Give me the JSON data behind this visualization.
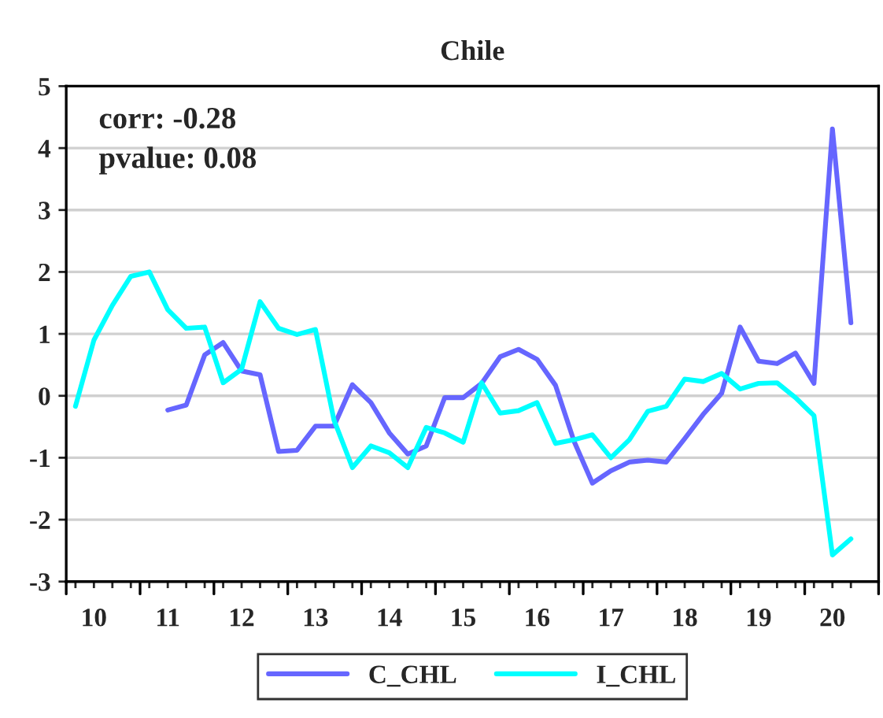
{
  "chart_data": {
    "type": "line",
    "title": "Chile",
    "annotations": [
      "corr: -0.28",
      "pvalue: 0.08"
    ],
    "categories": [
      null,
      "10",
      null,
      null,
      null,
      "11",
      null,
      null,
      null,
      "12",
      null,
      null,
      null,
      "13",
      null,
      null,
      null,
      "14",
      null,
      null,
      null,
      "15",
      null,
      null,
      null,
      "16",
      null,
      null,
      null,
      "17",
      null,
      null,
      null,
      "18",
      null,
      null,
      null,
      "19",
      null,
      null,
      null,
      "20",
      null
    ],
    "series": [
      {
        "name": "C_CHL",
        "color": "#6666ff",
        "values": [
          null,
          null,
          null,
          null,
          null,
          -0.23,
          -0.15,
          0.66,
          0.86,
          0.4,
          0.34,
          -0.9,
          -0.88,
          -0.49,
          -0.49,
          0.18,
          -0.11,
          -0.6,
          -0.94,
          -0.81,
          -0.03,
          -0.03,
          0.2,
          0.63,
          0.75,
          0.59,
          0.17,
          -0.73,
          -1.41,
          -1.21,
          -1.07,
          -1.04,
          -1.07,
          -0.69,
          -0.3,
          0.04,
          1.11,
          0.56,
          0.52,
          0.69,
          0.2,
          4.31,
          1.18
        ]
      },
      {
        "name": "I_CHL",
        "color": "#00ffff",
        "values": [
          -0.17,
          0.9,
          1.46,
          1.93,
          2.0,
          1.39,
          1.09,
          1.11,
          0.21,
          0.43,
          1.52,
          1.09,
          0.99,
          1.07,
          -0.39,
          -1.16,
          -0.81,
          -0.92,
          -1.16,
          -0.51,
          -0.6,
          -0.75,
          0.21,
          -0.28,
          -0.24,
          -0.11,
          -0.77,
          -0.71,
          -0.63,
          -1.0,
          -0.71,
          -0.25,
          -0.17,
          0.27,
          0.23,
          0.36,
          0.11,
          0.2,
          0.21,
          -0.03,
          -0.32,
          -2.57,
          -2.31
        ]
      }
    ],
    "ylim": [
      -3,
      5
    ],
    "yticks": [
      -3,
      -2,
      -1,
      0,
      1,
      2,
      3,
      4,
      5
    ],
    "grid": "y",
    "legend": "bottom",
    "marker": "none",
    "line_style": "solid"
  }
}
